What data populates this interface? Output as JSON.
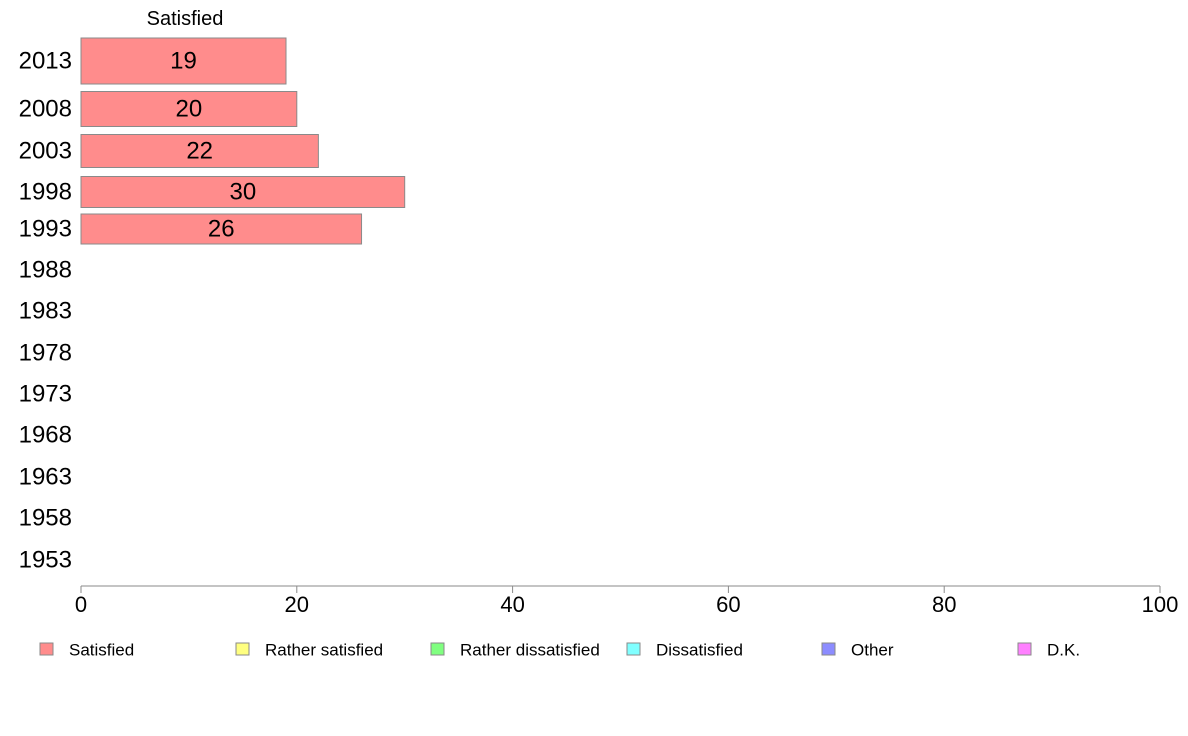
{
  "chart_data": {
    "type": "bar",
    "orientation": "horizontal",
    "stacked": true,
    "column_header": "Satisfied",
    "categories": [
      "2013",
      "2008",
      "2003",
      "1998",
      "1993",
      "1988",
      "1983",
      "1978",
      "1973",
      "1968",
      "1963",
      "1958",
      "1953"
    ],
    "series": [
      {
        "name": "Satisfied",
        "color": "#ff8c8c",
        "values": [
          19,
          20,
          22,
          30,
          26,
          null,
          null,
          null,
          null,
          null,
          null,
          null,
          null
        ]
      },
      {
        "name": "Rather satisfied",
        "color": "#ffff80",
        "values": [
          null,
          null,
          null,
          null,
          null,
          null,
          null,
          null,
          null,
          null,
          null,
          null,
          null
        ]
      },
      {
        "name": "Rather dissatisfied",
        "color": "#80ff80",
        "values": [
          null,
          null,
          null,
          null,
          null,
          null,
          null,
          null,
          null,
          null,
          null,
          null,
          null
        ]
      },
      {
        "name": "Dissatisfied",
        "color": "#80ffff",
        "values": [
          null,
          null,
          null,
          null,
          null,
          null,
          null,
          null,
          null,
          null,
          null,
          null,
          null
        ]
      },
      {
        "name": "Other",
        "color": "#8c8cff",
        "values": [
          null,
          null,
          null,
          null,
          null,
          null,
          null,
          null,
          null,
          null,
          null,
          null,
          null
        ]
      },
      {
        "name": "D.K.",
        "color": "#ff80ff",
        "values": [
          null,
          null,
          null,
          null,
          null,
          null,
          null,
          null,
          null,
          null,
          null,
          null,
          null
        ]
      }
    ],
    "xlim": [
      0,
      100
    ],
    "xticks": [
      "0",
      "20",
      "40",
      "60",
      "80",
      "100"
    ],
    "grid": false,
    "legend_position": "bottom"
  }
}
